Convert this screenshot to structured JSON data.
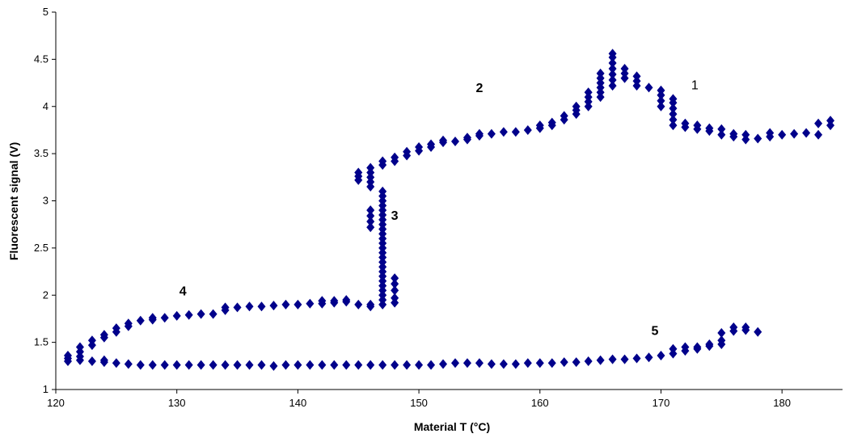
{
  "chart_data": {
    "type": "scatter",
    "title": "",
    "xlabel": "Material T (°C)",
    "ylabel": "Fluorescent signal (V)",
    "xlim": [
      120,
      185
    ],
    "ylim": [
      1,
      5
    ],
    "xticks": [
      "120",
      "130",
      "140",
      "150",
      "160",
      "170",
      "180"
    ],
    "yticks": [
      "1",
      "1.5",
      "2",
      "2.5",
      "3",
      "3.5",
      "4",
      "4.5",
      "5"
    ],
    "grid": false,
    "marker_color": "#00008B",
    "annotations": [
      {
        "text": "1",
        "x": 172.8,
        "y": 4.18,
        "bold": false
      },
      {
        "text": "2",
        "x": 155.0,
        "y": 4.15,
        "bold": true
      },
      {
        "text": "3",
        "x": 148.0,
        "y": 2.8,
        "bold": true
      },
      {
        "text": "4",
        "x": 130.5,
        "y": 2.0,
        "bold": true
      },
      {
        "text": "5",
        "x": 169.5,
        "y": 1.58,
        "bold": true
      }
    ],
    "series": [
      {
        "points": [
          [
            121,
            1.3
          ],
          [
            121,
            1.33
          ],
          [
            121,
            1.36
          ],
          [
            122,
            1.45
          ],
          [
            122,
            1.4
          ],
          [
            122,
            1.35
          ],
          [
            122,
            1.31
          ],
          [
            123,
            1.52
          ],
          [
            123,
            1.47
          ],
          [
            124,
            1.58
          ],
          [
            124,
            1.55
          ],
          [
            125,
            1.65
          ],
          [
            125,
            1.61
          ],
          [
            126,
            1.7
          ],
          [
            126,
            1.67
          ],
          [
            127,
            1.73
          ],
          [
            128,
            1.74
          ],
          [
            128,
            1.76
          ],
          [
            129,
            1.76
          ],
          [
            130,
            1.78
          ],
          [
            131,
            1.79
          ],
          [
            132,
            1.8
          ],
          [
            133,
            1.8
          ],
          [
            134,
            1.84
          ],
          [
            134,
            1.87
          ],
          [
            135,
            1.87
          ],
          [
            136,
            1.88
          ],
          [
            137,
            1.88
          ],
          [
            138,
            1.89
          ],
          [
            139,
            1.9
          ],
          [
            140,
            1.9
          ],
          [
            141,
            1.91
          ],
          [
            142,
            1.91
          ],
          [
            142,
            1.94
          ],
          [
            143,
            1.92
          ],
          [
            143,
            1.94
          ],
          [
            144,
            1.93
          ],
          [
            144,
            1.95
          ],
          [
            145,
            1.9
          ],
          [
            146,
            1.88
          ],
          [
            146,
            1.9
          ],
          [
            147,
            1.9
          ],
          [
            147,
            1.95
          ],
          [
            147,
            2.0
          ],
          [
            147,
            2.05
          ],
          [
            147,
            2.1
          ],
          [
            147,
            2.15
          ],
          [
            147,
            2.2
          ],
          [
            147,
            2.25
          ],
          [
            147,
            2.3
          ],
          [
            147,
            2.35
          ],
          [
            147,
            2.4
          ],
          [
            147,
            2.45
          ],
          [
            147,
            2.5
          ],
          [
            147,
            2.55
          ],
          [
            147,
            2.6
          ],
          [
            147,
            2.65
          ],
          [
            147,
            2.7
          ],
          [
            147,
            2.75
          ],
          [
            147,
            2.8
          ],
          [
            147,
            2.85
          ],
          [
            147,
            2.9
          ],
          [
            147,
            2.95
          ],
          [
            147,
            3.0
          ],
          [
            147,
            3.05
          ],
          [
            147,
            3.1
          ],
          [
            146,
            2.72
          ],
          [
            146,
            2.78
          ],
          [
            146,
            2.84
          ],
          [
            146,
            2.9
          ],
          [
            148,
            1.92
          ],
          [
            148,
            1.97
          ],
          [
            148,
            2.05
          ],
          [
            148,
            2.12
          ],
          [
            148,
            2.18
          ],
          [
            145,
            3.22
          ],
          [
            145,
            3.26
          ],
          [
            145,
            3.3
          ],
          [
            146,
            3.15
          ],
          [
            146,
            3.2
          ],
          [
            146,
            3.25
          ],
          [
            146,
            3.3
          ],
          [
            146,
            3.35
          ],
          [
            147,
            3.38
          ],
          [
            147,
            3.42
          ],
          [
            148,
            3.42
          ],
          [
            148,
            3.46
          ],
          [
            149,
            3.48
          ],
          [
            149,
            3.52
          ],
          [
            150,
            3.53
          ],
          [
            150,
            3.57
          ],
          [
            151,
            3.57
          ],
          [
            151,
            3.6
          ],
          [
            152,
            3.62
          ],
          [
            152,
            3.64
          ],
          [
            153,
            3.63
          ],
          [
            154,
            3.65
          ],
          [
            154,
            3.67
          ],
          [
            155,
            3.69
          ],
          [
            155,
            3.71
          ],
          [
            156,
            3.71
          ],
          [
            157,
            3.73
          ],
          [
            158,
            3.73
          ],
          [
            159,
            3.75
          ],
          [
            160,
            3.77
          ],
          [
            160,
            3.8
          ],
          [
            161,
            3.8
          ],
          [
            161,
            3.83
          ],
          [
            162,
            3.86
          ],
          [
            162,
            3.9
          ],
          [
            163,
            3.92
          ],
          [
            163,
            3.96
          ],
          [
            163,
            4.0
          ],
          [
            164,
            4.0
          ],
          [
            164,
            4.05
          ],
          [
            164,
            4.1
          ],
          [
            164,
            4.15
          ],
          [
            165,
            4.1
          ],
          [
            165,
            4.15
          ],
          [
            165,
            4.2
          ],
          [
            165,
            4.25
          ],
          [
            165,
            4.3
          ],
          [
            165,
            4.35
          ],
          [
            166,
            4.22
          ],
          [
            166,
            4.28
          ],
          [
            166,
            4.34
          ],
          [
            166,
            4.4
          ],
          [
            166,
            4.46
          ],
          [
            166,
            4.52
          ],
          [
            166,
            4.56
          ],
          [
            167,
            4.3
          ],
          [
            167,
            4.35
          ],
          [
            167,
            4.4
          ],
          [
            168,
            4.22
          ],
          [
            168,
            4.27
          ],
          [
            168,
            4.32
          ],
          [
            169,
            4.2
          ],
          [
            170,
            4.0
          ],
          [
            170,
            4.06
          ],
          [
            170,
            4.12
          ],
          [
            170,
            4.17
          ],
          [
            171,
            3.8
          ],
          [
            171,
            3.86
          ],
          [
            171,
            3.92
          ],
          [
            171,
            3.98
          ],
          [
            171,
            4.04
          ],
          [
            171,
            4.08
          ],
          [
            172,
            3.78
          ],
          [
            172,
            3.82
          ],
          [
            173,
            3.76
          ],
          [
            173,
            3.8
          ],
          [
            174,
            3.74
          ],
          [
            174,
            3.77
          ],
          [
            175,
            3.7
          ],
          [
            175,
            3.76
          ],
          [
            176,
            3.68
          ],
          [
            176,
            3.71
          ],
          [
            177,
            3.65
          ],
          [
            177,
            3.7
          ],
          [
            178,
            3.66
          ],
          [
            179,
            3.68
          ],
          [
            179,
            3.72
          ],
          [
            180,
            3.7
          ],
          [
            181,
            3.71
          ],
          [
            182,
            3.72
          ],
          [
            183,
            3.7
          ],
          [
            183,
            3.82
          ],
          [
            184,
            3.8
          ],
          [
            184,
            3.85
          ],
          [
            123,
            1.3
          ],
          [
            124,
            1.29
          ],
          [
            124,
            1.31
          ],
          [
            125,
            1.28
          ],
          [
            126,
            1.27
          ],
          [
            127,
            1.26
          ],
          [
            128,
            1.26
          ],
          [
            129,
            1.26
          ],
          [
            130,
            1.26
          ],
          [
            131,
            1.26
          ],
          [
            132,
            1.26
          ],
          [
            133,
            1.26
          ],
          [
            134,
            1.26
          ],
          [
            135,
            1.26
          ],
          [
            136,
            1.26
          ],
          [
            137,
            1.26
          ],
          [
            138,
            1.25
          ],
          [
            139,
            1.26
          ],
          [
            140,
            1.26
          ],
          [
            141,
            1.26
          ],
          [
            142,
            1.26
          ],
          [
            143,
            1.26
          ],
          [
            144,
            1.26
          ],
          [
            145,
            1.26
          ],
          [
            146,
            1.26
          ],
          [
            147,
            1.26
          ],
          [
            148,
            1.26
          ],
          [
            149,
            1.26
          ],
          [
            150,
            1.26
          ],
          [
            151,
            1.26
          ],
          [
            152,
            1.27
          ],
          [
            153,
            1.28
          ],
          [
            154,
            1.28
          ],
          [
            155,
            1.28
          ],
          [
            156,
            1.27
          ],
          [
            157,
            1.27
          ],
          [
            158,
            1.27
          ],
          [
            159,
            1.28
          ],
          [
            160,
            1.28
          ],
          [
            161,
            1.28
          ],
          [
            162,
            1.29
          ],
          [
            163,
            1.29
          ],
          [
            164,
            1.3
          ],
          [
            165,
            1.31
          ],
          [
            166,
            1.32
          ],
          [
            167,
            1.32
          ],
          [
            168,
            1.33
          ],
          [
            169,
            1.34
          ],
          [
            170,
            1.36
          ],
          [
            171,
            1.38
          ],
          [
            171,
            1.43
          ],
          [
            172,
            1.41
          ],
          [
            172,
            1.45
          ],
          [
            173,
            1.43
          ],
          [
            173,
            1.45
          ],
          [
            174,
            1.46
          ],
          [
            174,
            1.48
          ],
          [
            175,
            1.48
          ],
          [
            175,
            1.52
          ],
          [
            175,
            1.6
          ],
          [
            176,
            1.62
          ],
          [
            176,
            1.66
          ],
          [
            177,
            1.63
          ],
          [
            177,
            1.66
          ],
          [
            178,
            1.61
          ]
        ]
      }
    ]
  }
}
